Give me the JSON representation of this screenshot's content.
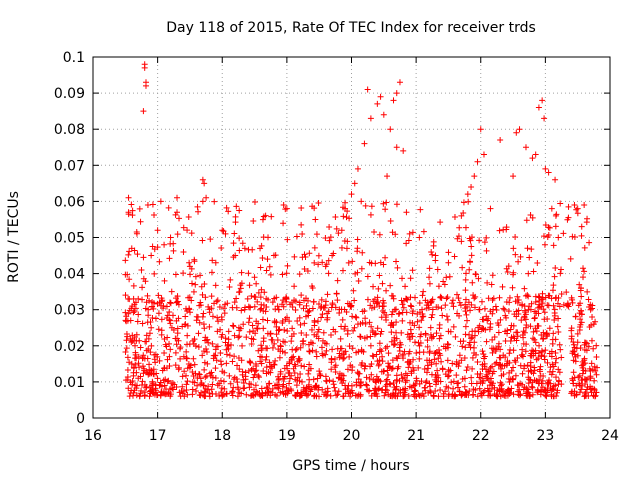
{
  "chart_data": {
    "type": "scatter",
    "title": "Day 118 of 2015, Rate Of TEC Index for receiver trds",
    "xlabel": "GPS time / hours",
    "ylabel": "ROTI / TECUs",
    "xlim": [
      16,
      24
    ],
    "ylim": [
      0,
      0.1
    ],
    "x_ticks": [
      "16",
      "17",
      "18",
      "19",
      "20",
      "21",
      "22",
      "23",
      "24"
    ],
    "y_ticks": [
      "0",
      "0.01",
      "0.02",
      "0.03",
      "0.04",
      "0.05",
      "0.06",
      "0.07",
      "0.08",
      "0.09",
      "0.1"
    ],
    "grid": true,
    "marker": "+",
    "color": "#ff0000",
    "series": [
      {
        "values": [
          [
            16.55,
            0.061
          ],
          [
            16.55,
            0.057
          ],
          [
            16.6,
            0.047
          ],
          [
            16.7,
            0.033
          ],
          [
            16.75,
            0.041
          ],
          [
            16.8,
            0.098
          ],
          [
            16.8,
            0.097
          ],
          [
            16.82,
            0.093
          ],
          [
            16.82,
            0.092
          ],
          [
            16.78,
            0.085
          ],
          [
            16.85,
            0.059
          ],
          [
            16.9,
            0.045
          ],
          [
            17.0,
            0.052
          ],
          [
            17.05,
            0.06
          ],
          [
            17.1,
            0.048
          ],
          [
            17.2,
            0.05
          ],
          [
            17.3,
            0.061
          ],
          [
            17.3,
            0.057
          ],
          [
            17.4,
            0.046
          ],
          [
            17.5,
            0.042
          ],
          [
            17.7,
            0.066
          ],
          [
            17.72,
            0.065
          ],
          [
            17.7,
            0.06
          ],
          [
            17.75,
            0.061
          ],
          [
            17.9,
            0.043
          ],
          [
            18.0,
            0.052
          ],
          [
            18.05,
            0.051
          ],
          [
            18.2,
            0.045
          ],
          [
            18.35,
            0.047
          ],
          [
            18.5,
            0.039
          ],
          [
            18.7,
            0.044
          ],
          [
            18.8,
            0.045
          ],
          [
            18.95,
            0.059
          ],
          [
            19.0,
            0.058
          ],
          [
            19.2,
            0.032
          ],
          [
            19.4,
            0.036
          ],
          [
            19.6,
            0.042
          ],
          [
            19.7,
            0.045
          ],
          [
            19.85,
            0.052
          ],
          [
            19.9,
            0.058
          ],
          [
            20.0,
            0.062
          ],
          [
            20.05,
            0.065
          ],
          [
            20.1,
            0.069
          ],
          [
            20.15,
            0.06
          ],
          [
            20.2,
            0.076
          ],
          [
            20.25,
            0.091
          ],
          [
            20.3,
            0.083
          ],
          [
            20.4,
            0.087
          ],
          [
            20.45,
            0.089
          ],
          [
            20.5,
            0.084
          ],
          [
            20.55,
            0.067
          ],
          [
            20.6,
            0.08
          ],
          [
            20.65,
            0.088
          ],
          [
            20.7,
            0.09
          ],
          [
            20.75,
            0.093
          ],
          [
            20.7,
            0.075
          ],
          [
            20.8,
            0.074
          ],
          [
            20.85,
            0.057
          ],
          [
            20.9,
            0.051
          ],
          [
            21.05,
            0.05
          ],
          [
            21.2,
            0.039
          ],
          [
            21.3,
            0.045
          ],
          [
            21.5,
            0.043
          ],
          [
            21.7,
            0.056
          ],
          [
            21.8,
            0.062
          ],
          [
            21.85,
            0.064
          ],
          [
            21.9,
            0.067
          ],
          [
            21.95,
            0.071
          ],
          [
            22.0,
            0.08
          ],
          [
            22.05,
            0.073
          ],
          [
            22.15,
            0.058
          ],
          [
            22.3,
            0.077
          ],
          [
            22.5,
            0.067
          ],
          [
            22.55,
            0.079
          ],
          [
            22.6,
            0.08
          ],
          [
            22.7,
            0.075
          ],
          [
            22.8,
            0.072
          ],
          [
            22.85,
            0.073
          ],
          [
            22.9,
            0.086
          ],
          [
            22.95,
            0.088
          ],
          [
            22.98,
            0.083
          ],
          [
            23.0,
            0.069
          ],
          [
            23.05,
            0.068
          ],
          [
            23.1,
            0.058
          ],
          [
            23.15,
            0.066
          ],
          [
            23.2,
            0.05
          ],
          [
            23.45,
            0.059
          ],
          [
            23.5,
            0.058
          ],
          [
            23.6,
            0.059
          ],
          [
            23.55,
            0.036
          ],
          [
            23.7,
            0.03
          ],
          [
            23.75,
            0.026
          ],
          [
            16.6,
            0.015
          ],
          [
            16.65,
            0.02
          ],
          [
            16.7,
            0.011
          ],
          [
            16.9,
            0.025
          ],
          [
            17.1,
            0.018
          ],
          [
            17.3,
            0.022
          ],
          [
            17.5,
            0.014
          ],
          [
            17.7,
            0.028
          ],
          [
            17.9,
            0.019
          ],
          [
            18.1,
            0.024
          ],
          [
            18.3,
            0.016
          ],
          [
            18.5,
            0.012
          ],
          [
            18.7,
            0.027
          ],
          [
            18.9,
            0.02
          ],
          [
            19.1,
            0.017
          ],
          [
            19.3,
            0.023
          ],
          [
            19.5,
            0.013
          ],
          [
            19.7,
            0.019
          ],
          [
            19.9,
            0.009
          ],
          [
            20.1,
            0.026
          ],
          [
            20.3,
            0.02
          ],
          [
            20.5,
            0.031
          ],
          [
            20.7,
            0.022
          ],
          [
            20.9,
            0.015
          ],
          [
            21.1,
            0.028
          ],
          [
            21.3,
            0.018
          ],
          [
            21.5,
            0.024
          ],
          [
            21.7,
            0.016
          ],
          [
            21.9,
            0.021
          ],
          [
            22.1,
            0.027
          ],
          [
            22.3,
            0.019
          ],
          [
            22.5,
            0.014
          ],
          [
            22.7,
            0.025
          ],
          [
            22.9,
            0.018
          ],
          [
            23.1,
            0.012
          ],
          [
            23.5,
            0.021
          ],
          [
            23.6,
            0.016
          ],
          [
            23.7,
            0.011
          ]
        ]
      }
    ]
  }
}
